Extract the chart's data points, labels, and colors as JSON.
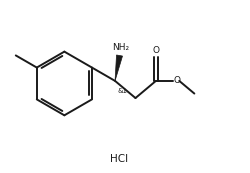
{
  "background": "#ffffff",
  "line_color": "#1a1a1a",
  "line_width": 1.4,
  "fig_width": 2.5,
  "fig_height": 1.73,
  "dpi": 100,
  "hcl_label": "HCl",
  "nh2_label": "NH₂",
  "stereo_label": "&1",
  "o_label": "O",
  "o_ester_label": "O"
}
